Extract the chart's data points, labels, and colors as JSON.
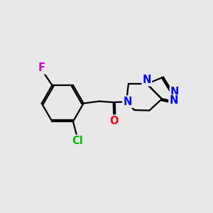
{
  "bg_color": "#e8e8e8",
  "bond_color": "#000000",
  "bond_width": 1.6,
  "atom_colors": {
    "F": "#cc00cc",
    "Cl": "#00bb00",
    "O": "#ff0000",
    "N": "#0000ff",
    "C": "#000000"
  },
  "font_size_atoms": 10.5
}
